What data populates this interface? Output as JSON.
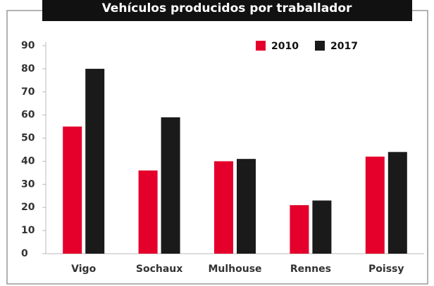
{
  "chart_data": {
    "type": "bar",
    "title": "Vehículos producidos por traballador",
    "categories": [
      "Vigo",
      "Sochaux",
      "Mulhouse",
      "Rennes",
      "Poissy"
    ],
    "series": [
      {
        "name": "2010",
        "color": "#e4002b",
        "values": [
          55,
          36,
          40,
          21,
          42
        ]
      },
      {
        "name": "2017",
        "color": "#1a1a1a",
        "values": [
          80,
          59,
          41,
          23,
          44
        ]
      }
    ],
    "ylim": [
      0,
      90
    ],
    "yticks": [
      0,
      10,
      20,
      30,
      40,
      50,
      60,
      70,
      80,
      90
    ],
    "grid": false,
    "legend": "top-right"
  }
}
